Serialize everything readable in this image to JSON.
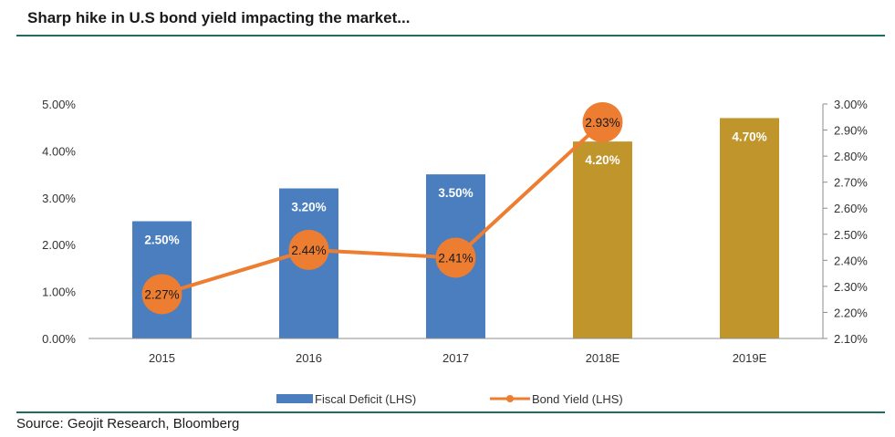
{
  "header": {
    "title": "Sharp hike in U.S bond yield impacting the market..."
  },
  "footer": {
    "source": "Source: Geojit Research, Bloomberg"
  },
  "chart_data": {
    "type": "bar",
    "categories": [
      "2015",
      "2016",
      "2017",
      "2018E",
      "2019E"
    ],
    "series": [
      {
        "name": "Fiscal Deficit (LHS)",
        "type": "bar",
        "axis": "left",
        "values": [
          2.5,
          3.2,
          3.5,
          4.2,
          4.7
        ],
        "labels": [
          "2.50%",
          "3.20%",
          "3.50%",
          "4.20%",
          "4.70%"
        ],
        "colors": [
          "#4a7ebf",
          "#4a7ebf",
          "#4a7ebf",
          "#c0962c",
          "#c0962c"
        ]
      },
      {
        "name": "Bond Yield (LHS)",
        "type": "line",
        "axis": "right",
        "values": [
          2.27,
          2.44,
          2.41,
          2.93,
          null
        ],
        "labels": [
          "2.27%",
          "2.44%",
          "2.41%",
          "2.93%",
          ""
        ],
        "color": "#ed7d31"
      }
    ],
    "y_left": {
      "ylim": [
        0,
        5
      ],
      "ticks": [
        0,
        1,
        2,
        3,
        4,
        5
      ],
      "tick_labels": [
        "0.00%",
        "1.00%",
        "2.00%",
        "3.00%",
        "4.00%",
        "5.00%"
      ]
    },
    "y_right": {
      "ylim": [
        2.1,
        3.0
      ],
      "ticks": [
        2.1,
        2.2,
        2.3,
        2.4,
        2.5,
        2.6,
        2.7,
        2.8,
        2.9,
        3.0
      ],
      "tick_labels": [
        "2.10%",
        "2.20%",
        "2.30%",
        "2.40%",
        "2.50%",
        "2.60%",
        "2.70%",
        "2.80%",
        "2.90%",
        "3.00%"
      ]
    },
    "grid": false,
    "legend": {
      "position": "bottom",
      "entries": [
        "Fiscal Deficit (LHS)",
        "Bond Yield (LHS)"
      ]
    }
  }
}
